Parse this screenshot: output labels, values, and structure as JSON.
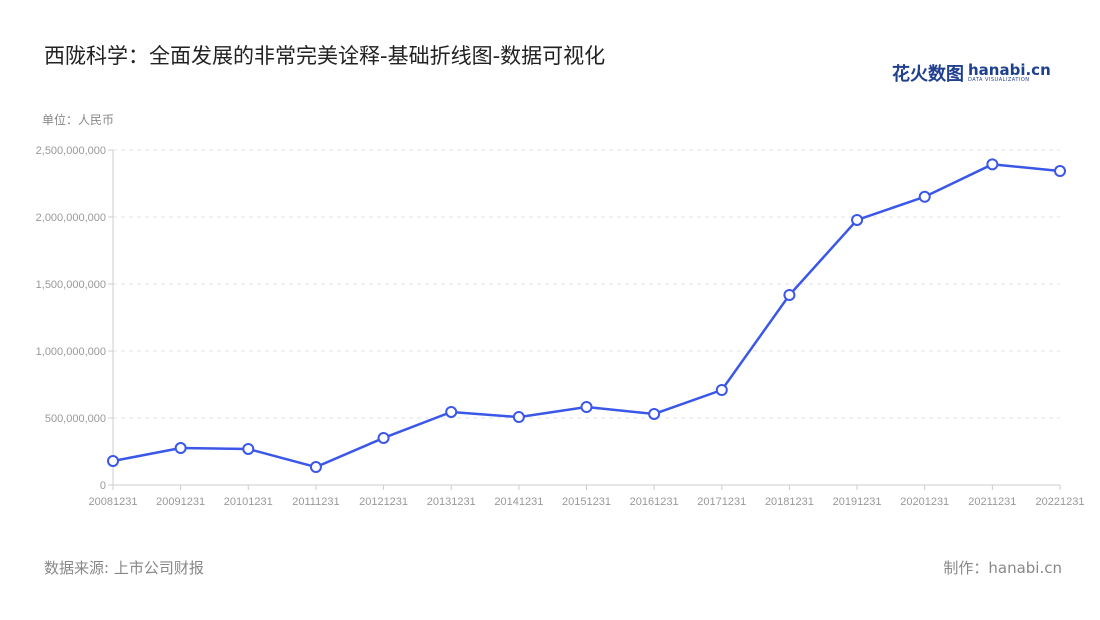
{
  "title": "西陇科学：全面发展的非常完美诠释-基础折线图-数据可视化",
  "logo": {
    "cn": "花火数图",
    "en": "hanabi.cn",
    "sub": "DATA VISUALIZATION"
  },
  "footer": {
    "source": "数据来源: 上市公司财报",
    "maker": "制作：hanabi.cn"
  },
  "chart_data": {
    "type": "line",
    "title": "西陇科学：全面发展的非常完美诠释-基础折线图-数据可视化",
    "ylabel": "单位：人民币",
    "xlabel": "",
    "categories": [
      "20081231",
      "20091231",
      "20101231",
      "20111231",
      "20121231",
      "20131231",
      "20141231",
      "20151231",
      "20161231",
      "20171231",
      "20181231",
      "20191231",
      "20201231",
      "20211231",
      "20221231"
    ],
    "series": [
      {
        "values": [
          179000000,
          276000000,
          269000000,
          134000000,
          351000000,
          545000000,
          507000000,
          582000000,
          530000000,
          709000000,
          1418000000,
          1978000000,
          2151000000,
          2393000000,
          2343000000
        ]
      }
    ],
    "ylim": [
      0,
      2500000000
    ],
    "yticks": [
      "0",
      "500,000,000",
      "1,000,000,000",
      "1,500,000,000",
      "2,000,000,000",
      "2,500,000,000"
    ],
    "grid": true,
    "line_color": "#3a57e8",
    "marker": "hollow-circle"
  }
}
